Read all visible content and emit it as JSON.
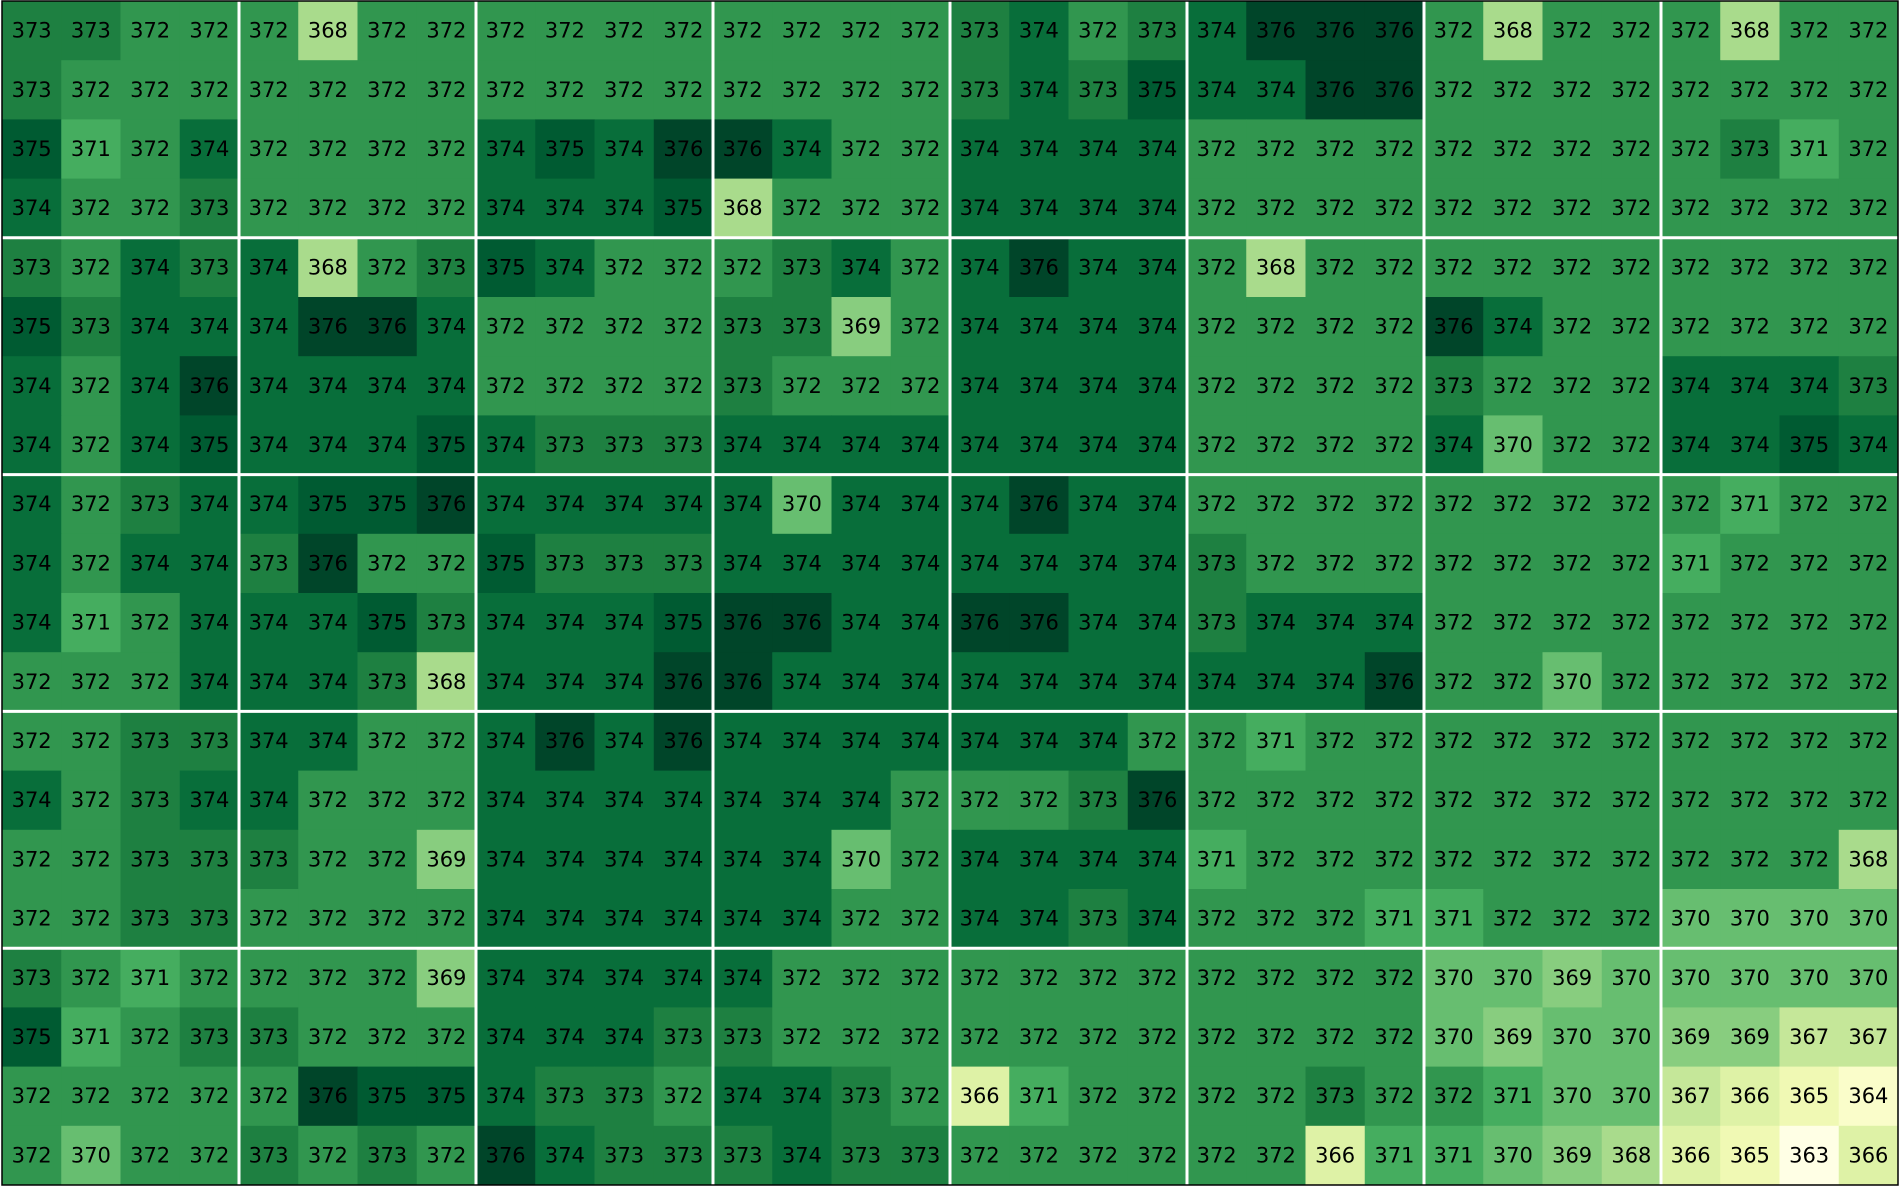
{
  "chart_data": {
    "type": "heatmap",
    "colormap": "YlGn",
    "block_size": 4,
    "values": [
      [
        373,
        373,
        372,
        372,
        372,
        368,
        372,
        372,
        372,
        372,
        372,
        372,
        372,
        372,
        372,
        372,
        373,
        374,
        372,
        373,
        374,
        376,
        376,
        376,
        372,
        368,
        372,
        372,
        372,
        368,
        372,
        372
      ],
      [
        373,
        372,
        372,
        372,
        372,
        372,
        372,
        372,
        372,
        372,
        372,
        372,
        372,
        372,
        372,
        372,
        373,
        374,
        373,
        375,
        374,
        374,
        376,
        376,
        372,
        372,
        372,
        372,
        372,
        372,
        372,
        372
      ],
      [
        375,
        371,
        372,
        374,
        372,
        372,
        372,
        372,
        374,
        375,
        374,
        376,
        376,
        374,
        372,
        372,
        374,
        374,
        374,
        374,
        372,
        372,
        372,
        372,
        372,
        372,
        372,
        372,
        372,
        373,
        371,
        372
      ],
      [
        374,
        372,
        372,
        373,
        372,
        372,
        372,
        372,
        374,
        374,
        374,
        375,
        368,
        372,
        372,
        372,
        374,
        374,
        374,
        374,
        372,
        372,
        372,
        372,
        372,
        372,
        372,
        372,
        372,
        372,
        372,
        372
      ],
      [
        373,
        372,
        374,
        373,
        374,
        368,
        372,
        373,
        375,
        374,
        372,
        372,
        372,
        373,
        374,
        372,
        374,
        376,
        374,
        374,
        372,
        368,
        372,
        372,
        372,
        372,
        372,
        372,
        372,
        372,
        372,
        372
      ],
      [
        375,
        373,
        374,
        374,
        374,
        376,
        376,
        374,
        372,
        372,
        372,
        372,
        373,
        373,
        369,
        372,
        374,
        374,
        374,
        374,
        372,
        372,
        372,
        372,
        376,
        374,
        372,
        372,
        372,
        372,
        372,
        372
      ],
      [
        374,
        372,
        374,
        376,
        374,
        374,
        374,
        374,
        372,
        372,
        372,
        372,
        373,
        372,
        372,
        372,
        374,
        374,
        374,
        374,
        372,
        372,
        372,
        372,
        373,
        372,
        372,
        372,
        374,
        374,
        374,
        373
      ],
      [
        374,
        372,
        374,
        375,
        374,
        374,
        374,
        375,
        374,
        373,
        373,
        373,
        374,
        374,
        374,
        374,
        374,
        374,
        374,
        374,
        372,
        372,
        372,
        372,
        374,
        370,
        372,
        372,
        374,
        374,
        375,
        374
      ],
      [
        374,
        372,
        373,
        374,
        374,
        375,
        375,
        376,
        374,
        374,
        374,
        374,
        374,
        370,
        374,
        374,
        374,
        376,
        374,
        374,
        372,
        372,
        372,
        372,
        372,
        372,
        372,
        372,
        372,
        371,
        372,
        372
      ],
      [
        374,
        372,
        374,
        374,
        373,
        376,
        372,
        372,
        375,
        373,
        373,
        373,
        374,
        374,
        374,
        374,
        374,
        374,
        374,
        374,
        373,
        372,
        372,
        372,
        372,
        372,
        372,
        372,
        371,
        372,
        372,
        372
      ],
      [
        374,
        371,
        372,
        374,
        374,
        374,
        375,
        373,
        374,
        374,
        374,
        375,
        376,
        376,
        374,
        374,
        376,
        376,
        374,
        374,
        373,
        374,
        374,
        374,
        372,
        372,
        372,
        372,
        372,
        372,
        372,
        372
      ],
      [
        372,
        372,
        372,
        374,
        374,
        374,
        373,
        368,
        374,
        374,
        374,
        376,
        376,
        374,
        374,
        374,
        374,
        374,
        374,
        374,
        374,
        374,
        374,
        376,
        372,
        372,
        370,
        372,
        372,
        372,
        372,
        372
      ],
      [
        372,
        372,
        373,
        373,
        374,
        374,
        372,
        372,
        374,
        376,
        374,
        376,
        374,
        374,
        374,
        374,
        374,
        374,
        374,
        372,
        372,
        371,
        372,
        372,
        372,
        372,
        372,
        372,
        372,
        372,
        372,
        372
      ],
      [
        374,
        372,
        373,
        374,
        374,
        372,
        372,
        372,
        374,
        374,
        374,
        374,
        374,
        374,
        374,
        372,
        372,
        372,
        373,
        376,
        372,
        372,
        372,
        372,
        372,
        372,
        372,
        372,
        372,
        372,
        372,
        372
      ],
      [
        372,
        372,
        373,
        373,
        373,
        372,
        372,
        369,
        374,
        374,
        374,
        374,
        374,
        374,
        370,
        372,
        374,
        374,
        374,
        374,
        371,
        372,
        372,
        372,
        372,
        372,
        372,
        372,
        372,
        372,
        372,
        368
      ],
      [
        372,
        372,
        373,
        373,
        372,
        372,
        372,
        372,
        374,
        374,
        374,
        374,
        374,
        374,
        372,
        372,
        374,
        374,
        373,
        374,
        372,
        372,
        372,
        371,
        371,
        372,
        372,
        372,
        370,
        370,
        370,
        370
      ],
      [
        373,
        372,
        371,
        372,
        372,
        372,
        372,
        369,
        374,
        374,
        374,
        374,
        374,
        372,
        372,
        372,
        372,
        372,
        372,
        372,
        372,
        372,
        372,
        372,
        370,
        370,
        369,
        370,
        370,
        370,
        370,
        370
      ],
      [
        375,
        371,
        372,
        373,
        373,
        372,
        372,
        372,
        374,
        374,
        374,
        373,
        373,
        372,
        372,
        372,
        372,
        372,
        372,
        372,
        372,
        372,
        372,
        372,
        370,
        369,
        370,
        370,
        369,
        369,
        367,
        367
      ],
      [
        372,
        372,
        372,
        372,
        372,
        376,
        375,
        375,
        374,
        373,
        373,
        372,
        374,
        374,
        373,
        372,
        366,
        371,
        372,
        372,
        372,
        372,
        373,
        372,
        372,
        371,
        370,
        370,
        367,
        366,
        365,
        364
      ],
      [
        372,
        370,
        372,
        372,
        373,
        372,
        373,
        372,
        376,
        374,
        373,
        373,
        373,
        374,
        373,
        373,
        372,
        372,
        372,
        372,
        372,
        372,
        366,
        371,
        371,
        370,
        369,
        368,
        366,
        365,
        363,
        366
      ]
    ]
  }
}
